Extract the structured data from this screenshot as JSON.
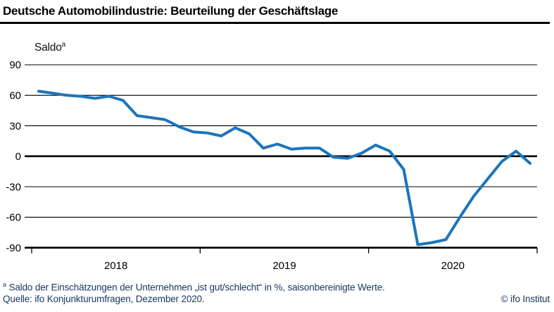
{
  "header": {
    "title": "Deutsche Automobilindustrie: Beurteilung der Geschäftslage"
  },
  "chart_data": {
    "type": "line",
    "title": "Deutsche Automobilindustrie: Beurteilung der Geschäftslage",
    "y_axis_title": "Saldo",
    "y_axis_title_sup": "a",
    "ylim": [
      -90,
      90
    ],
    "yticks": [
      90,
      60,
      30,
      0,
      -30,
      -60,
      -90
    ],
    "year_labels": [
      "2018",
      "2019",
      "2020"
    ],
    "grid": "horizontal",
    "legend": "none",
    "line_color": "#1b75bc",
    "axis_color": "#000000",
    "text_navy": "#17365d",
    "months": [
      "2018-01",
      "2018-02",
      "2018-03",
      "2018-04",
      "2018-05",
      "2018-06",
      "2018-07",
      "2018-08",
      "2018-09",
      "2018-10",
      "2018-11",
      "2018-12",
      "2019-01",
      "2019-02",
      "2019-03",
      "2019-04",
      "2019-05",
      "2019-06",
      "2019-07",
      "2019-08",
      "2019-09",
      "2019-10",
      "2019-11",
      "2019-12",
      "2020-01",
      "2020-02",
      "2020-03",
      "2020-04",
      "2020-05",
      "2020-06",
      "2020-07",
      "2020-08",
      "2020-09",
      "2020-10",
      "2020-11",
      "2020-12"
    ],
    "values": [
      64,
      62,
      60,
      59,
      57,
      59,
      55,
      40,
      38,
      36,
      29,
      24,
      23,
      20,
      28,
      22,
      8,
      12,
      7,
      8,
      8,
      -1,
      -2,
      3,
      11,
      5,
      -13,
      -87,
      -85,
      -82,
      -60,
      -39,
      -22,
      -5,
      5,
      -7
    ]
  },
  "footer": {
    "footnote_marker": "a",
    "footnote_text": " Saldo der Einschätzungen der Unternehmen „ist gut/schlecht“ in %, saisonbereinigte Werte.",
    "source": "Quelle: ifo Konjunkturumfragen, Dezember 2020.",
    "copyright": "© ifo Institut"
  }
}
